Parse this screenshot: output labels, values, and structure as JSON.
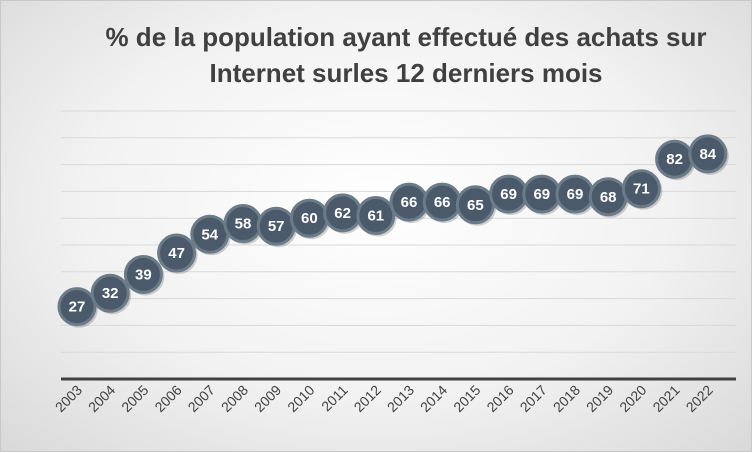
{
  "chart_data": {
    "type": "line",
    "title_line1": "% de la population ayant effectué des achats sur",
    "title_line2": "Internet surles 12 derniers mois",
    "xlabel": "",
    "ylabel": "",
    "ylim": [
      0,
      100
    ],
    "grid": true,
    "legend": "none",
    "categories": [
      "2003",
      "2004",
      "2005",
      "2006",
      "2007",
      "2008",
      "2009",
      "2010",
      "2011",
      "2012",
      "2013",
      "2014",
      "2015",
      "2016",
      "2017",
      "2018",
      "2019",
      "2020",
      "2021",
      "2022"
    ],
    "series": [
      {
        "values": [
          27,
          32,
          39,
          47,
          54,
          58,
          57,
          60,
          62,
          61,
          66,
          66,
          65,
          69,
          69,
          69,
          68,
          71,
          82,
          84
        ]
      }
    ],
    "colors": {
      "marker": "#4a5a6a",
      "marker_edge": "#6b7b88",
      "gridline": "#d9d9d9",
      "axis": "#404040"
    }
  }
}
